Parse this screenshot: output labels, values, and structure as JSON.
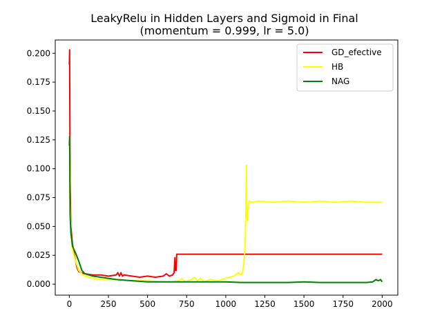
{
  "chart_data": {
    "type": "line",
    "title_line1": "LeakyRelu in Hidden Layers and Sigmoid in Final",
    "title_line2": "(momentum = 0.999, lr = 5.0)",
    "xlabel": "",
    "ylabel": "",
    "xlim": [
      -90,
      2100
    ],
    "ylim": [
      -0.0095,
      0.2115
    ],
    "x_ticks": [
      0,
      250,
      500,
      750,
      1000,
      1250,
      1500,
      1750,
      2000
    ],
    "x_tick_labels": [
      "0",
      "250",
      "500",
      "750",
      "1000",
      "1250",
      "1500",
      "1750",
      "2000"
    ],
    "y_ticks": [
      0.0,
      0.025,
      0.05,
      0.075,
      0.1,
      0.125,
      0.15,
      0.175,
      0.2
    ],
    "y_tick_labels": [
      "0.000",
      "0.025",
      "0.050",
      "0.075",
      "0.100",
      "0.125",
      "0.150",
      "0.175",
      "0.200"
    ],
    "grid": false,
    "legend_position": "top-right",
    "series": [
      {
        "name": "GD_efective",
        "color": "#ff0000",
        "x": [
          0,
          2,
          5,
          10,
          20,
          30,
          40,
          50,
          60,
          75,
          100,
          150,
          200,
          250,
          300,
          310,
          320,
          330,
          340,
          350,
          400,
          450,
          500,
          550,
          600,
          620,
          640,
          660,
          670,
          675,
          678,
          682,
          684,
          686,
          700,
          800,
          1000,
          1200,
          1400,
          1600,
          1800,
          2000
        ],
        "y": [
          0.19,
          0.203,
          0.09,
          0.05,
          0.035,
          0.027,
          0.02,
          0.014,
          0.011,
          0.01,
          0.009,
          0.008,
          0.008,
          0.007,
          0.008,
          0.01,
          0.007,
          0.01,
          0.007,
          0.008,
          0.007,
          0.006,
          0.007,
          0.006,
          0.007,
          0.009,
          0.007,
          0.008,
          0.01,
          0.023,
          0.012,
          0.018,
          0.012,
          0.026,
          0.026,
          0.026,
          0.026,
          0.026,
          0.026,
          0.026,
          0.026,
          0.026
        ]
      },
      {
        "name": "HB",
        "color": "#ffff00",
        "x": [
          0,
          2,
          5,
          10,
          20,
          40,
          60,
          80,
          100,
          150,
          200,
          300,
          400,
          500,
          600,
          650,
          700,
          720,
          740,
          760,
          780,
          800,
          820,
          840,
          860,
          900,
          950,
          1000,
          1050,
          1080,
          1100,
          1110,
          1120,
          1125,
          1128,
          1132,
          1135,
          1138,
          1142,
          1146,
          1150,
          1160,
          1180,
          1200,
          1300,
          1400,
          1500,
          1600,
          1700,
          1800,
          1900,
          2000
        ],
        "y": [
          0.12,
          0.128,
          0.07,
          0.045,
          0.03,
          0.02,
          0.012,
          0.009,
          0.007,
          0.005,
          0.004,
          0.004,
          0.003,
          0.003,
          0.002,
          0.002,
          0.003,
          0.005,
          0.002,
          0.003,
          0.004,
          0.006,
          0.003,
          0.005,
          0.002,
          0.004,
          0.003,
          0.005,
          0.007,
          0.01,
          0.008,
          0.012,
          0.025,
          0.04,
          0.06,
          0.103,
          0.06,
          0.055,
          0.065,
          0.07,
          0.072,
          0.071,
          0.071,
          0.072,
          0.071,
          0.072,
          0.071,
          0.072,
          0.071,
          0.072,
          0.071,
          0.071
        ]
      },
      {
        "name": "NAG",
        "color": "#008000",
        "x": [
          0,
          2,
          5,
          10,
          20,
          40,
          60,
          80,
          100,
          150,
          200,
          300,
          400,
          500,
          600,
          700,
          800,
          900,
          1000,
          1100,
          1200,
          1300,
          1400,
          1500,
          1600,
          1700,
          1800,
          1900,
          1940,
          1960,
          1975,
          1990,
          2000
        ],
        "y": [
          0.12,
          0.128,
          0.06,
          0.045,
          0.033,
          0.027,
          0.02,
          0.012,
          0.009,
          0.007,
          0.006,
          0.004,
          0.003,
          0.002,
          0.002,
          0.002,
          0.002,
          0.002,
          0.002,
          0.0015,
          0.0015,
          0.0015,
          0.0015,
          0.002,
          0.0015,
          0.0015,
          0.0015,
          0.0015,
          0.002,
          0.004,
          0.003,
          0.004,
          0.002
        ]
      }
    ]
  }
}
